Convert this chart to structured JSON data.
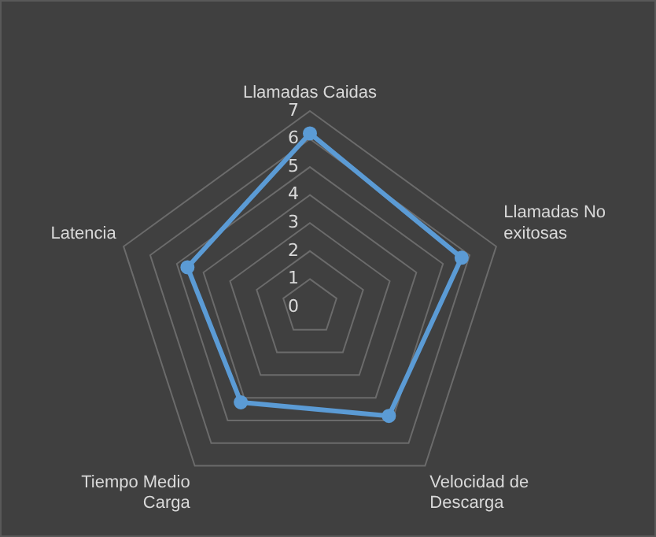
{
  "chart_data": {
    "type": "radar",
    "categories": [
      "Llamadas Caidas",
      "Llamadas No exitosas",
      "Velocidad de Descarga",
      "Tiempo Medio Carga",
      "Latencia"
    ],
    "series": [
      {
        "color": "#5b9bd5",
        "values": [
          6.2,
          5.7,
          4.8,
          4.2,
          4.6
        ]
      }
    ],
    "ylim": [
      0,
      7
    ],
    "yticks": [
      0,
      1,
      2,
      3,
      4,
      5,
      6,
      7
    ],
    "grid": true,
    "marker": "circle",
    "line_style": "solid"
  }
}
